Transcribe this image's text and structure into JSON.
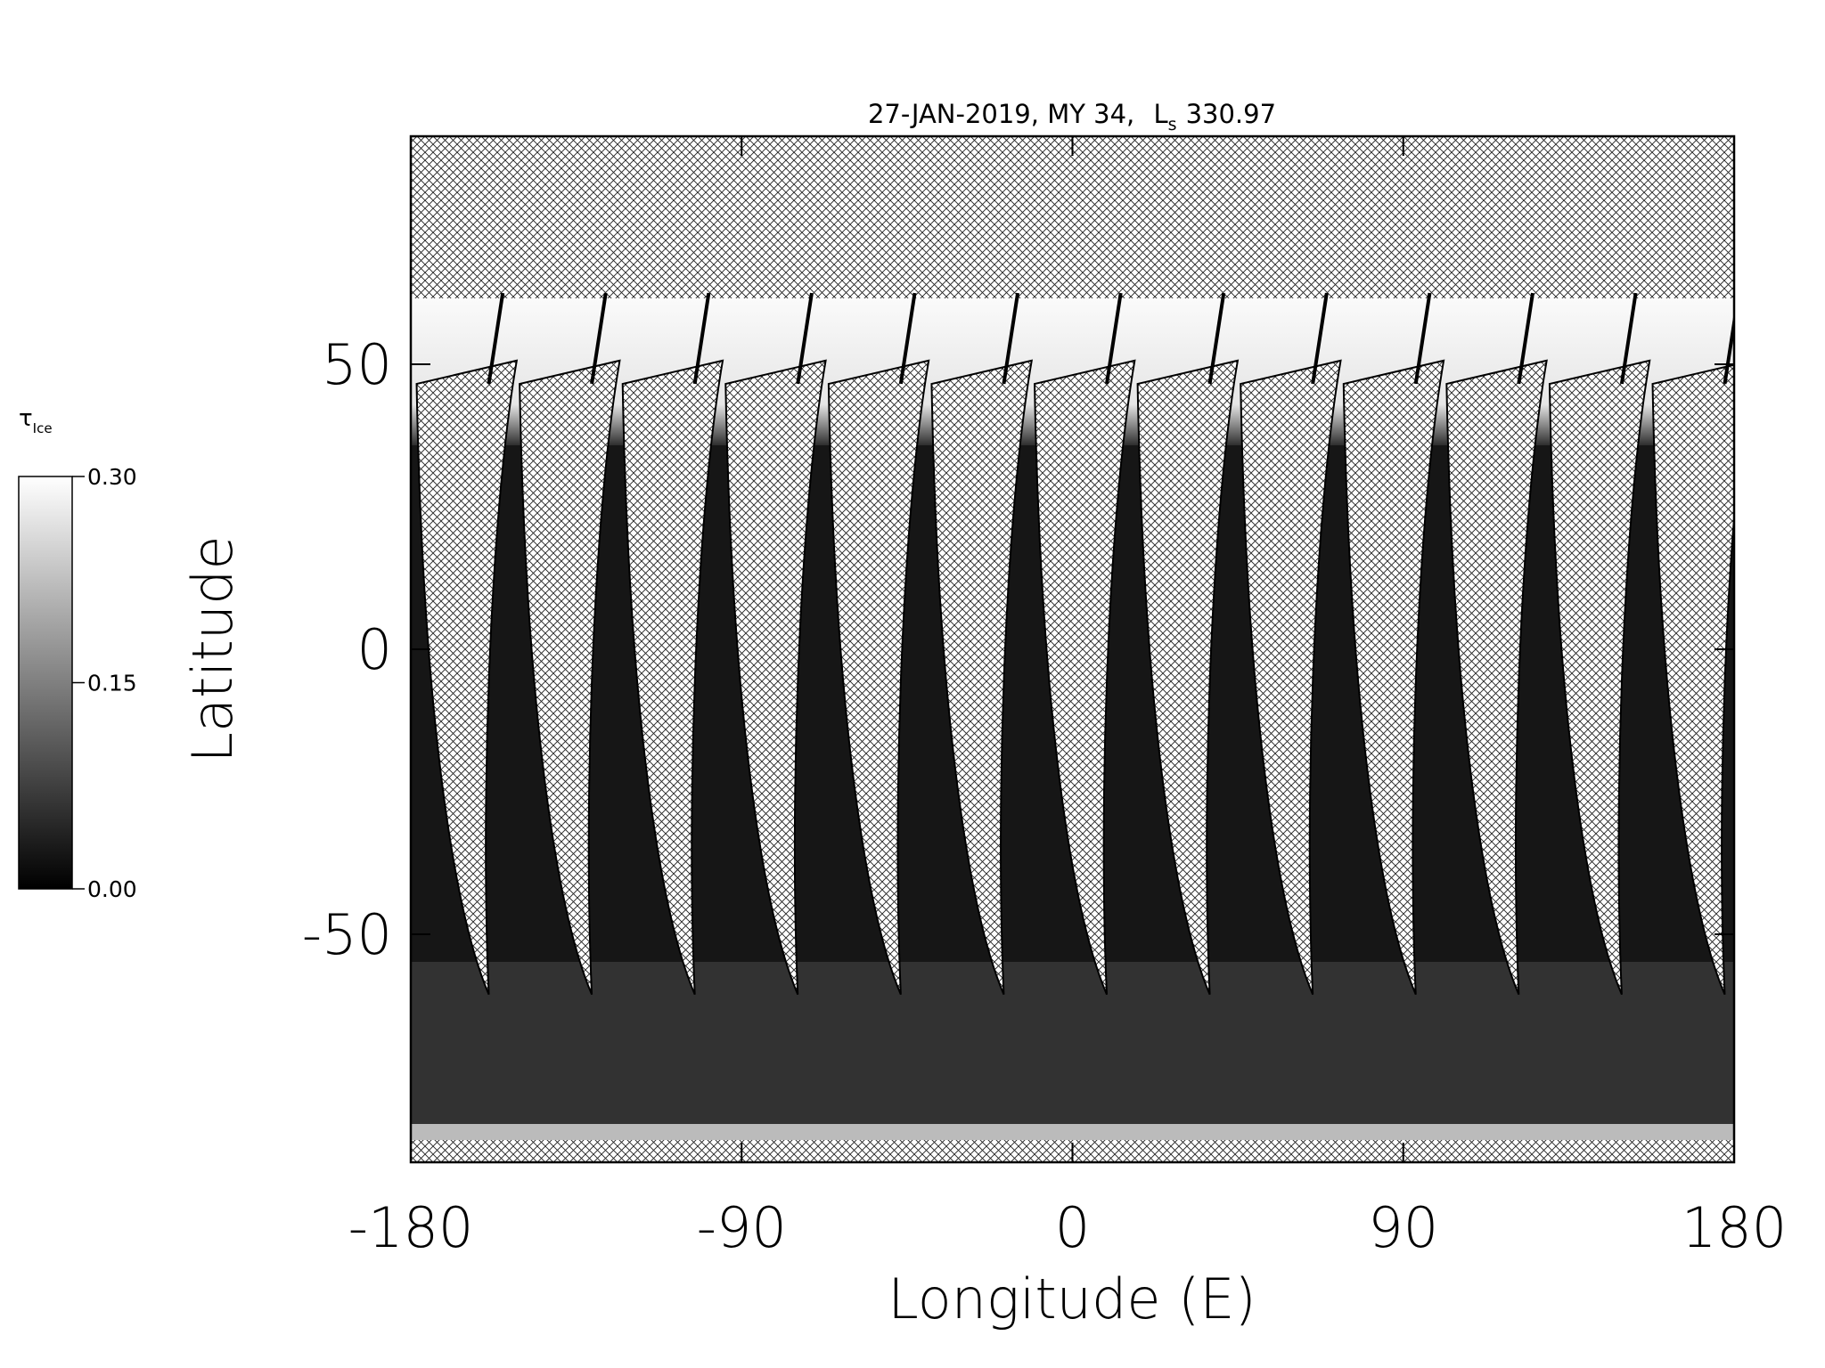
{
  "chart_data": {
    "type": "map",
    "title": "27-JAN-2019, MY 34,",
    "title_symbol": "L",
    "title_symbol_subscript": "s",
    "title_value": "330.97",
    "x_label": "Longitude (E)",
    "y_label": "Latitude",
    "xlim": [
      -180,
      180
    ],
    "xticks": [
      -180,
      -90,
      0,
      90,
      180
    ],
    "ylim": [
      -90,
      90
    ],
    "yticks": [
      -50,
      0,
      50
    ],
    "colorbar": {
      "label": "τ",
      "label_subscript": "Ice",
      "clim": [
        0,
        0.3
      ],
      "ticks": [
        {
          "value": 0,
          "label": "0.00"
        },
        {
          "value": 0.15,
          "label": "0.15"
        },
        {
          "value": 0.3,
          "label": "0.30"
        }
      ],
      "colors": [
        "#000000",
        "#ffffff"
      ]
    }
  }
}
